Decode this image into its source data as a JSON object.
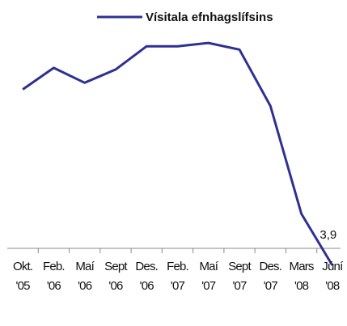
{
  "chart_data": {
    "type": "line",
    "categories": [
      "Okt.\n'05",
      "Feb.\n'06",
      "Maí\n'06",
      "Sept\n'06",
      "Des.\n'06",
      "Feb.\n'07",
      "Maí\n'07",
      "Sept\n'07",
      "Des.\n'07",
      "Mars\n'08",
      "Júní\n'08"
    ],
    "series": [
      {
        "name": "Vísitala efnhagslífsins",
        "color": "#2e3192",
        "values": [
          110,
          123,
          114,
          122,
          136,
          136,
          138,
          134,
          100,
          35,
          3.9
        ],
        "value_labels": [
          null,
          null,
          null,
          null,
          null,
          null,
          null,
          null,
          null,
          null,
          "3,9"
        ]
      }
    ],
    "ylim": [
      0,
      160
    ],
    "legend": "top"
  }
}
